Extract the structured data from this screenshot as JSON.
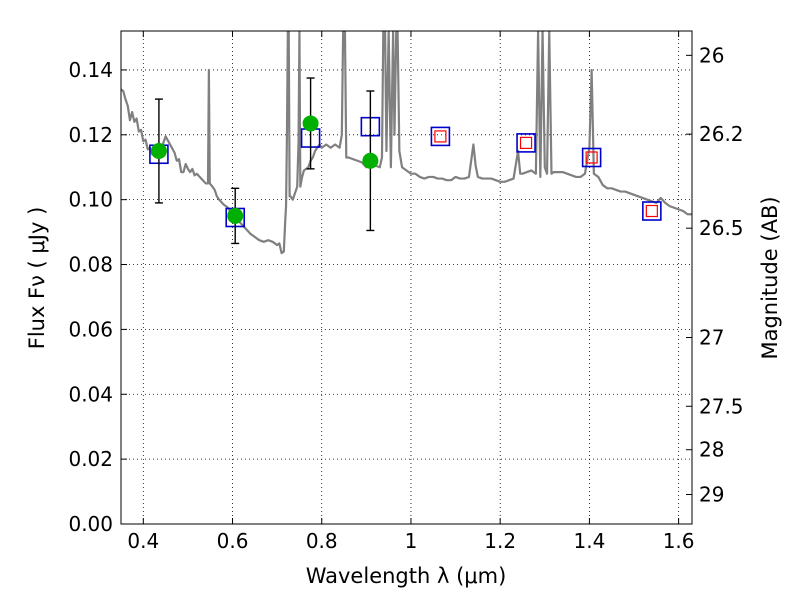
{
  "chart_data": {
    "type": "scatter",
    "title": "",
    "xlabel": "Wavelength  λ (μm)",
    "ylabel": "Flux  Fν  ( μJy )",
    "ylabel_right": "Magnitude (AB)",
    "xlim": [
      0.35,
      1.63
    ],
    "ylim": [
      0.0,
      0.152
    ],
    "grid": true,
    "x_ticks": [
      0.4,
      0.6,
      0.8,
      1.0,
      1.2,
      1.4,
      1.6
    ],
    "x_tick_labels": [
      "0.4",
      "0.6",
      "0.8",
      "1",
      "1.2",
      "1.4",
      "1.6"
    ],
    "y_ticks": [
      0.0,
      0.02,
      0.04,
      0.06,
      0.08,
      0.1,
      0.12,
      0.14
    ],
    "y_tick_labels": [
      "0.00",
      "0.02",
      "0.04",
      "0.06",
      "0.08",
      "0.10",
      "0.12",
      "0.14"
    ],
    "right_ticks": [
      {
        "label": "26",
        "flux": 0.1445
      },
      {
        "label": "26.2",
        "flux": 0.1202
      },
      {
        "label": "26.5",
        "flux": 0.0912
      },
      {
        "label": "27",
        "flux": 0.0575
      },
      {
        "label": "27.5",
        "flux": 0.0363
      },
      {
        "label": "28",
        "flux": 0.0229
      },
      {
        "label": "29",
        "flux": 0.0091
      }
    ],
    "colors": {
      "model": "#808080",
      "observed": "#00b000",
      "model_box": "#0000cc",
      "prediction_box": "#ff0000",
      "errorbar": "#000000"
    },
    "series": [
      {
        "kind": "line",
        "points": [
          [
            0.35,
            0.134
          ],
          [
            0.355,
            0.1335
          ],
          [
            0.36,
            0.131
          ],
          [
            0.365,
            0.129
          ],
          [
            0.37,
            0.1245
          ],
          [
            0.375,
            0.127
          ],
          [
            0.38,
            0.124
          ],
          [
            0.385,
            0.125
          ],
          [
            0.39,
            0.121
          ],
          [
            0.395,
            0.1215
          ],
          [
            0.4,
            0.118
          ],
          [
            0.405,
            0.1185
          ],
          [
            0.41,
            0.1155
          ],
          [
            0.415,
            0.116
          ],
          [
            0.42,
            0.114
          ],
          [
            0.425,
            0.1155
          ],
          [
            0.43,
            0.115
          ],
          [
            0.44,
            0.1155
          ],
          [
            0.45,
            0.1195
          ],
          [
            0.46,
            0.117
          ],
          [
            0.47,
            0.1145
          ],
          [
            0.475,
            0.112
          ],
          [
            0.48,
            0.1125
          ],
          [
            0.485,
            0.1085
          ],
          [
            0.49,
            0.1085
          ],
          [
            0.495,
            0.111
          ],
          [
            0.5,
            0.1095
          ],
          [
            0.505,
            0.1085
          ],
          [
            0.51,
            0.1095
          ],
          [
            0.515,
            0.1075
          ],
          [
            0.52,
            0.108
          ],
          [
            0.53,
            0.1065
          ],
          [
            0.54,
            0.105
          ],
          [
            0.545,
            0.105
          ],
          [
            0.547,
            0.14
          ],
          [
            0.549,
            0.105
          ],
          [
            0.555,
            0.104
          ],
          [
            0.56,
            0.103
          ],
          [
            0.565,
            0.101
          ],
          [
            0.57,
            0.1
          ],
          [
            0.58,
            0.0985
          ],
          [
            0.59,
            0.0975
          ],
          [
            0.6,
            0.095
          ],
          [
            0.61,
            0.094
          ],
          [
            0.62,
            0.0925
          ],
          [
            0.63,
            0.091
          ],
          [
            0.64,
            0.0895
          ],
          [
            0.65,
            0.0885
          ],
          [
            0.66,
            0.0875
          ],
          [
            0.67,
            0.087
          ],
          [
            0.68,
            0.0875
          ],
          [
            0.69,
            0.087
          ],
          [
            0.7,
            0.086
          ],
          [
            0.705,
            0.0865
          ],
          [
            0.71,
            0.0835
          ],
          [
            0.715,
            0.084
          ],
          [
            0.718,
            0.093
          ],
          [
            0.72,
            0.098
          ],
          [
            0.722,
            0.12
          ],
          [
            0.724,
            0.152
          ],
          [
            0.726,
            0.152
          ],
          [
            0.728,
            0.101
          ],
          [
            0.73,
            0.101
          ],
          [
            0.735,
            0.1
          ],
          [
            0.74,
            0.102
          ],
          [
            0.745,
            0.104
          ],
          [
            0.748,
            0.118
          ],
          [
            0.75,
            0.152
          ],
          [
            0.752,
            0.104
          ],
          [
            0.756,
            0.107
          ],
          [
            0.76,
            0.109
          ],
          [
            0.765,
            0.1095
          ],
          [
            0.77,
            0.11
          ],
          [
            0.775,
            0.112
          ],
          [
            0.78,
            0.113
          ],
          [
            0.785,
            0.115
          ],
          [
            0.79,
            0.116
          ],
          [
            0.795,
            0.117
          ],
          [
            0.8,
            0.116
          ],
          [
            0.81,
            0.117
          ],
          [
            0.82,
            0.116
          ],
          [
            0.83,
            0.117
          ],
          [
            0.84,
            0.116
          ],
          [
            0.845,
            0.12
          ],
          [
            0.848,
            0.152
          ],
          [
            0.852,
            0.152
          ],
          [
            0.855,
            0.113
          ],
          [
            0.86,
            0.113
          ],
          [
            0.87,
            0.1125
          ],
          [
            0.88,
            0.112
          ],
          [
            0.89,
            0.1115
          ],
          [
            0.9,
            0.11
          ],
          [
            0.905,
            0.111
          ],
          [
            0.91,
            0.11
          ],
          [
            0.92,
            0.1105
          ],
          [
            0.93,
            0.11
          ],
          [
            0.935,
            0.113
          ],
          [
            0.938,
            0.152
          ],
          [
            0.942,
            0.152
          ],
          [
            0.945,
            0.115
          ],
          [
            0.95,
            0.152
          ],
          [
            0.955,
            0.11
          ],
          [
            0.96,
            0.152
          ],
          [
            0.963,
            0.12
          ],
          [
            0.967,
            0.152
          ],
          [
            0.97,
            0.152
          ],
          [
            0.974,
            0.115
          ],
          [
            0.98,
            0.11
          ],
          [
            0.99,
            0.109
          ],
          [
            1.0,
            0.108
          ],
          [
            1.01,
            0.108
          ],
          [
            1.02,
            0.107
          ],
          [
            1.03,
            0.1065
          ],
          [
            1.04,
            0.107
          ],
          [
            1.05,
            0.107
          ],
          [
            1.06,
            0.1065
          ],
          [
            1.07,
            0.1065
          ],
          [
            1.08,
            0.106
          ],
          [
            1.09,
            0.106
          ],
          [
            1.1,
            0.107
          ],
          [
            1.11,
            0.1065
          ],
          [
            1.12,
            0.1065
          ],
          [
            1.13,
            0.107
          ],
          [
            1.14,
            0.117
          ],
          [
            1.145,
            0.1105
          ],
          [
            1.15,
            0.107
          ],
          [
            1.16,
            0.1065
          ],
          [
            1.17,
            0.1065
          ],
          [
            1.18,
            0.1065
          ],
          [
            1.19,
            0.106
          ],
          [
            1.2,
            0.1055
          ],
          [
            1.21,
            0.1055
          ],
          [
            1.22,
            0.106
          ],
          [
            1.23,
            0.1065
          ],
          [
            1.24,
            0.115
          ],
          [
            1.245,
            0.108
          ],
          [
            1.25,
            0.108
          ],
          [
            1.26,
            0.1085
          ],
          [
            1.27,
            0.109
          ],
          [
            1.28,
            0.108
          ],
          [
            1.285,
            0.152
          ],
          [
            1.29,
            0.107
          ],
          [
            1.295,
            0.152
          ],
          [
            1.3,
            0.11
          ],
          [
            1.305,
            0.108
          ],
          [
            1.31,
            0.152
          ],
          [
            1.315,
            0.108
          ],
          [
            1.32,
            0.1085
          ],
          [
            1.33,
            0.1085
          ],
          [
            1.34,
            0.1085
          ],
          [
            1.35,
            0.108
          ],
          [
            1.36,
            0.1075
          ],
          [
            1.37,
            0.107
          ],
          [
            1.38,
            0.107
          ],
          [
            1.39,
            0.108
          ],
          [
            1.4,
            0.116
          ],
          [
            1.405,
            0.14
          ],
          [
            1.41,
            0.108
          ],
          [
            1.42,
            0.107
          ],
          [
            1.43,
            0.1045
          ],
          [
            1.44,
            0.1035
          ],
          [
            1.45,
            0.1035
          ],
          [
            1.46,
            0.103
          ],
          [
            1.47,
            0.1025
          ],
          [
            1.48,
            0.1025
          ],
          [
            1.49,
            0.102
          ],
          [
            1.5,
            0.1015
          ],
          [
            1.51,
            0.101
          ],
          [
            1.52,
            0.1005
          ],
          [
            1.53,
            0.1
          ],
          [
            1.54,
            0.0995
          ],
          [
            1.55,
            0.099
          ],
          [
            1.56,
            0.1005
          ],
          [
            1.57,
            0.099
          ],
          [
            1.58,
            0.098
          ],
          [
            1.59,
            0.0975
          ],
          [
            1.6,
            0.097
          ],
          [
            1.61,
            0.0965
          ],
          [
            1.62,
            0.0955
          ],
          [
            1.63,
            0.0955
          ]
        ]
      },
      {
        "kind": "points-with-errors",
        "points": [
          {
            "x": 0.435,
            "y": 0.115,
            "err": 0.016
          },
          {
            "x": 0.606,
            "y": 0.095,
            "err": 0.0085
          },
          {
            "x": 0.775,
            "y": 0.1235,
            "err": 0.014
          },
          {
            "x": 0.909,
            "y": 0.112,
            "err": 0.0215
          }
        ]
      },
      {
        "kind": "open-squares",
        "points": [
          {
            "x": 0.435,
            "y": 0.114
          },
          {
            "x": 0.606,
            "y": 0.0945
          },
          {
            "x": 0.775,
            "y": 0.119
          },
          {
            "x": 0.909,
            "y": 0.1225
          },
          {
            "x": 1.066,
            "y": 0.1195
          },
          {
            "x": 1.258,
            "y": 0.1175
          },
          {
            "x": 1.405,
            "y": 0.113
          },
          {
            "x": 1.54,
            "y": 0.0965
          }
        ]
      },
      {
        "kind": "small-open-squares",
        "points": [
          {
            "x": 1.066,
            "y": 0.1195
          },
          {
            "x": 1.258,
            "y": 0.1175
          },
          {
            "x": 1.405,
            "y": 0.113
          },
          {
            "x": 1.54,
            "y": 0.0965
          }
        ]
      }
    ]
  }
}
